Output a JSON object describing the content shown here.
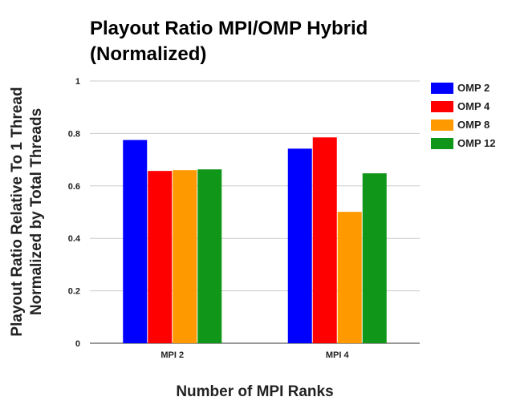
{
  "chart_data": {
    "type": "bar",
    "title_lines": [
      "Playout Ratio MPI/OMP Hybrid",
      "(Normalized)"
    ],
    "xlabel": "Number of MPI Ranks",
    "ylabel_lines": [
      "Playout Ratio Relative To 1 Thread",
      "Normalized by Total Threads"
    ],
    "categories": [
      "MPI 2",
      "MPI 4"
    ],
    "ylim": [
      0,
      1
    ],
    "yticks": [
      "0",
      "0.2",
      "0.4",
      "0.6",
      "0.8",
      "1"
    ],
    "grid": true,
    "legend_position": "right",
    "series": [
      {
        "name": "OMP 2",
        "color": "#0000ff",
        "values": [
          0.775,
          0.742
        ]
      },
      {
        "name": "OMP 4",
        "color": "#ff0000",
        "values": [
          0.657,
          0.785
        ]
      },
      {
        "name": "OMP 8",
        "color": "#ff9900",
        "values": [
          0.66,
          0.501
        ]
      },
      {
        "name": "OMP 12",
        "color": "#109618",
        "values": [
          0.663,
          0.648
        ]
      }
    ]
  }
}
